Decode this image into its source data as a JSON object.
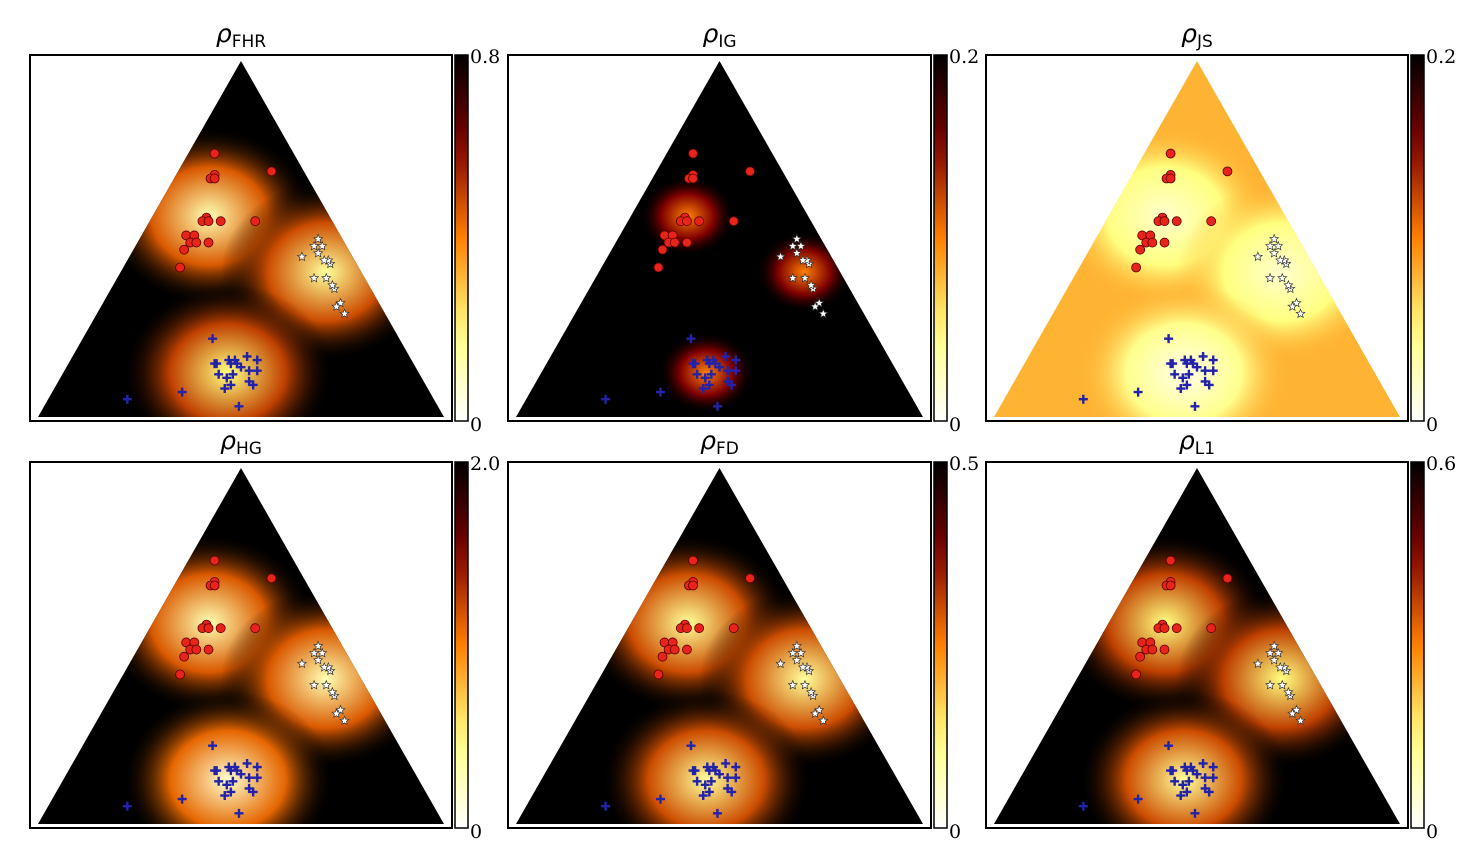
{
  "chart_data": [
    {
      "type": "heatmap",
      "title_symbol": "ρ",
      "title_subscript": "FHR",
      "colorbar_ticks": [
        "0.8",
        "0"
      ],
      "colorbar_range": [
        0,
        0.8
      ],
      "colormap": "afmhot_r",
      "blob_levels": [
        0.12,
        0.16,
        0.2
      ],
      "background_level": 0.8
    },
    {
      "type": "heatmap",
      "title_symbol": "ρ",
      "title_subscript": "IG",
      "colorbar_ticks": [
        "0.2",
        "0"
      ],
      "colorbar_range": [
        0,
        0.2
      ],
      "colormap": "afmhot_r",
      "blob_levels": [
        0.1,
        0.1,
        0.1
      ],
      "background_level": 0.2
    },
    {
      "type": "heatmap",
      "title_symbol": "ρ",
      "title_subscript": "JS",
      "colorbar_ticks": [
        "0.2",
        "0"
      ],
      "colorbar_range": [
        0,
        0.2
      ],
      "colormap": "afmhot_r",
      "blob_levels": [
        0.02,
        0.02,
        0.01
      ],
      "background_level": 0.08
    },
    {
      "type": "heatmap",
      "title_symbol": "ρ",
      "title_subscript": "HG",
      "colorbar_ticks": [
        "2.0",
        "0"
      ],
      "colorbar_range": [
        0,
        2.0
      ],
      "colormap": "afmhot_r",
      "blob_levels": [
        0.3,
        0.3,
        0.2
      ],
      "background_level": 2.0
    },
    {
      "type": "heatmap",
      "title_symbol": "ρ",
      "title_subscript": "FD",
      "colorbar_ticks": [
        "0.5",
        "0"
      ],
      "colorbar_range": [
        0,
        0.5
      ],
      "colormap": "afmhot_r",
      "blob_levels": [
        0.1,
        0.1,
        0.1
      ],
      "background_level": 0.5
    },
    {
      "type": "heatmap",
      "title_symbol": "ρ",
      "title_subscript": "L1",
      "colorbar_ticks": [
        "0.6",
        "0"
      ],
      "colorbar_range": [
        0,
        0.6
      ],
      "colormap": "afmhot_r",
      "blob_levels": [
        0.15,
        0.15,
        0.12
      ],
      "background_level": 0.6
    }
  ],
  "scatter_groups": [
    {
      "name": "circles",
      "marker": "circle",
      "color": "#e8231a",
      "edge": "#5a0000",
      "points": [
        [
          -0.13,
          0.74
        ],
        [
          -0.13,
          0.68
        ],
        [
          -0.15,
          0.67
        ],
        [
          -0.13,
          0.67
        ],
        [
          0.15,
          0.69
        ],
        [
          -0.17,
          0.56
        ],
        [
          -0.19,
          0.55
        ],
        [
          -0.16,
          0.55
        ],
        [
          -0.1,
          0.55
        ],
        [
          0.07,
          0.55
        ],
        [
          -0.27,
          0.51
        ],
        [
          -0.23,
          0.51
        ],
        [
          -0.25,
          0.49
        ],
        [
          -0.22,
          0.49
        ],
        [
          -0.3,
          0.42
        ],
        [
          -0.16,
          0.49
        ],
        [
          -0.28,
          0.47
        ]
      ]
    },
    {
      "name": "stars",
      "marker": "star",
      "color": "#ffffff",
      "edge": "#333333",
      "points": [
        [
          0.36,
          0.48
        ],
        [
          0.38,
          0.5
        ],
        [
          0.4,
          0.48
        ],
        [
          0.38,
          0.46
        ],
        [
          0.3,
          0.45
        ],
        [
          0.44,
          0.43
        ],
        [
          0.43,
          0.44
        ],
        [
          0.41,
          0.44
        ],
        [
          0.36,
          0.39
        ],
        [
          0.42,
          0.39
        ],
        [
          0.46,
          0.36
        ],
        [
          0.45,
          0.37
        ],
        [
          0.49,
          0.32
        ],
        [
          0.47,
          0.31
        ],
        [
          0.51,
          0.29
        ]
      ]
    },
    {
      "name": "crosses",
      "marker": "plus",
      "color": "#2222aa",
      "edge": "#2222aa",
      "points": [
        [
          -0.14,
          0.22
        ],
        [
          -0.12,
          0.15
        ],
        [
          -0.06,
          0.16
        ],
        [
          -0.05,
          0.15
        ],
        [
          -0.03,
          0.16
        ],
        [
          -0.02,
          0.15
        ],
        [
          0.04,
          0.13
        ],
        [
          0.0,
          0.14
        ],
        [
          -0.11,
          0.12
        ],
        [
          -0.07,
          0.11
        ],
        [
          -0.04,
          0.12
        ],
        [
          0.08,
          0.13
        ],
        [
          0.08,
          0.16
        ],
        [
          0.03,
          0.17
        ],
        [
          -0.13,
          0.15
        ],
        [
          -0.08,
          0.08
        ],
        [
          -0.05,
          0.09
        ],
        [
          0.04,
          0.1
        ],
        [
          0.06,
          0.09
        ],
        [
          -0.01,
          0.03
        ],
        [
          -0.29,
          0.07
        ],
        [
          -0.56,
          0.05
        ]
      ]
    }
  ]
}
